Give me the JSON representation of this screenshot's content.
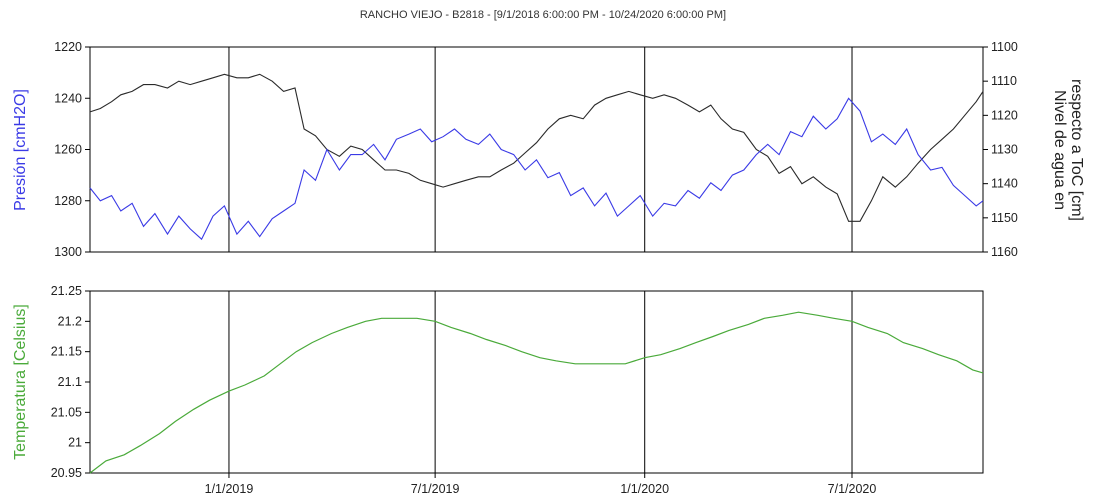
{
  "title": "RANCHO VIEJO - B2818 -  [9/1/2018 6:00:00 PM - 10/24/2020 6:00:00 PM]",
  "colors": {
    "pressure": "#3a3ae6",
    "level": "#2a2a2a",
    "temperature": "#4aaa3a",
    "axis": "#000000"
  },
  "x_tick_labels": [
    "1/1/2019",
    "7/1/2019",
    "1/1/2020",
    "7/1/2020"
  ],
  "chart_data": [
    {
      "type": "line",
      "title": "RANCHO VIEJO - B2818 -  [9/1/2018 6:00:00 PM - 10/24/2020 6:00:00 PM]",
      "xlabel": "",
      "x_range": [
        "2018-09-01",
        "2020-10-24"
      ],
      "grid": {
        "vertical_at": [
          "2019-01-01",
          "2019-07-01",
          "2020-01-01",
          "2020-07-01"
        ]
      },
      "y_left": {
        "label": "Presión [cmH2O]",
        "range": [
          1220,
          1300
        ],
        "reversed": true,
        "ticks": [
          "1220",
          "1240",
          "1260",
          "1280",
          "1300"
        ]
      },
      "y_right": {
        "label_line1": "Nivel de agua en",
        "label_line2": "respecto a ToC [cm]",
        "range": [
          1100,
          1160
        ],
        "reversed": true,
        "ticks": [
          "1100",
          "1110",
          "1120",
          "1130",
          "1140",
          "1150",
          "1160"
        ]
      },
      "series": [
        {
          "name": "Presión [cmH2O]",
          "axis": "left",
          "points": [
            [
              "2018-09-01",
              1275
            ],
            [
              "2018-09-10",
              1280
            ],
            [
              "2018-09-20",
              1278
            ],
            [
              "2018-09-28",
              1284
            ],
            [
              "2018-10-08",
              1281
            ],
            [
              "2018-10-18",
              1290
            ],
            [
              "2018-10-28",
              1285
            ],
            [
              "2018-11-08",
              1293
            ],
            [
              "2018-11-18",
              1286
            ],
            [
              "2018-11-28",
              1291
            ],
            [
              "2018-12-08",
              1295
            ],
            [
              "2018-12-18",
              1286
            ],
            [
              "2018-12-28",
              1282
            ],
            [
              "2019-01-08",
              1293
            ],
            [
              "2019-01-18",
              1288
            ],
            [
              "2019-01-28",
              1294
            ],
            [
              "2019-02-08",
              1287
            ],
            [
              "2019-02-18",
              1284
            ],
            [
              "2019-02-28",
              1281
            ],
            [
              "2019-03-08",
              1268
            ],
            [
              "2019-03-18",
              1272
            ],
            [
              "2019-03-28",
              1260
            ],
            [
              "2019-04-08",
              1268
            ],
            [
              "2019-04-18",
              1262
            ],
            [
              "2019-04-28",
              1262
            ],
            [
              "2019-05-08",
              1258
            ],
            [
              "2019-05-18",
              1264
            ],
            [
              "2019-05-28",
              1256
            ],
            [
              "2019-06-08",
              1254
            ],
            [
              "2019-06-18",
              1252
            ],
            [
              "2019-06-28",
              1257
            ],
            [
              "2019-07-08",
              1255
            ],
            [
              "2019-07-18",
              1252
            ],
            [
              "2019-07-28",
              1256
            ],
            [
              "2019-08-08",
              1258
            ],
            [
              "2019-08-18",
              1254
            ],
            [
              "2019-08-28",
              1260
            ],
            [
              "2019-09-08",
              1262
            ],
            [
              "2019-09-18",
              1268
            ],
            [
              "2019-09-28",
              1264
            ],
            [
              "2019-10-08",
              1271
            ],
            [
              "2019-10-18",
              1269
            ],
            [
              "2019-10-28",
              1278
            ],
            [
              "2019-11-08",
              1275
            ],
            [
              "2019-11-18",
              1282
            ],
            [
              "2019-11-28",
              1277
            ],
            [
              "2019-12-08",
              1286
            ],
            [
              "2019-12-18",
              1282
            ],
            [
              "2019-12-28",
              1278
            ],
            [
              "2020-01-08",
              1286
            ],
            [
              "2020-01-18",
              1281
            ],
            [
              "2020-01-28",
              1282
            ],
            [
              "2020-02-08",
              1276
            ],
            [
              "2020-02-18",
              1279
            ],
            [
              "2020-02-28",
              1273
            ],
            [
              "2020-03-08",
              1276
            ],
            [
              "2020-03-18",
              1270
            ],
            [
              "2020-03-28",
              1268
            ],
            [
              "2020-04-08",
              1262
            ],
            [
              "2020-04-18",
              1258
            ],
            [
              "2020-04-28",
              1262
            ],
            [
              "2020-05-08",
              1253
            ],
            [
              "2020-05-18",
              1255
            ],
            [
              "2020-05-28",
              1247
            ],
            [
              "2020-06-08",
              1252
            ],
            [
              "2020-06-18",
              1248
            ],
            [
              "2020-06-28",
              1240
            ],
            [
              "2020-07-08",
              1245
            ],
            [
              "2020-07-18",
              1257
            ],
            [
              "2020-07-28",
              1254
            ],
            [
              "2020-08-08",
              1258
            ],
            [
              "2020-08-18",
              1252
            ],
            [
              "2020-08-28",
              1262
            ],
            [
              "2020-09-08",
              1268
            ],
            [
              "2020-09-18",
              1267
            ],
            [
              "2020-09-28",
              1274
            ],
            [
              "2020-10-08",
              1278
            ],
            [
              "2020-10-18",
              1282
            ],
            [
              "2020-10-24",
              1280
            ]
          ]
        },
        {
          "name": "Nivel de agua en respecto a ToC [cm]",
          "axis": "right",
          "points": [
            [
              "2018-09-01",
              1119
            ],
            [
              "2018-09-10",
              1118
            ],
            [
              "2018-09-20",
              1116
            ],
            [
              "2018-09-28",
              1114
            ],
            [
              "2018-10-08",
              1113
            ],
            [
              "2018-10-18",
              1111
            ],
            [
              "2018-10-28",
              1111
            ],
            [
              "2018-11-08",
              1112
            ],
            [
              "2018-11-18",
              1110
            ],
            [
              "2018-11-28",
              1111
            ],
            [
              "2018-12-08",
              1110
            ],
            [
              "2018-12-18",
              1109
            ],
            [
              "2018-12-28",
              1108
            ],
            [
              "2019-01-08",
              1109
            ],
            [
              "2019-01-18",
              1109
            ],
            [
              "2019-01-28",
              1108
            ],
            [
              "2019-02-08",
              1110
            ],
            [
              "2019-02-18",
              1113
            ],
            [
              "2019-02-28",
              1112
            ],
            [
              "2019-03-08",
              1124
            ],
            [
              "2019-03-18",
              1126
            ],
            [
              "2019-03-28",
              1130
            ],
            [
              "2019-04-08",
              1132
            ],
            [
              "2019-04-18",
              1129
            ],
            [
              "2019-04-28",
              1130
            ],
            [
              "2019-05-08",
              1133
            ],
            [
              "2019-05-18",
              1136
            ],
            [
              "2019-05-28",
              1136
            ],
            [
              "2019-06-08",
              1137
            ],
            [
              "2019-06-18",
              1139
            ],
            [
              "2019-06-28",
              1140
            ],
            [
              "2019-07-08",
              1141
            ],
            [
              "2019-07-18",
              1140
            ],
            [
              "2019-07-28",
              1139
            ],
            [
              "2019-08-08",
              1138
            ],
            [
              "2019-08-18",
              1138
            ],
            [
              "2019-08-28",
              1136
            ],
            [
              "2019-09-08",
              1134
            ],
            [
              "2019-09-18",
              1131
            ],
            [
              "2019-09-28",
              1128
            ],
            [
              "2019-10-08",
              1124
            ],
            [
              "2019-10-18",
              1121
            ],
            [
              "2019-10-28",
              1120
            ],
            [
              "2019-11-08",
              1121
            ],
            [
              "2019-11-18",
              1117
            ],
            [
              "2019-11-28",
              1115
            ],
            [
              "2019-12-08",
              1114
            ],
            [
              "2019-12-18",
              1113
            ],
            [
              "2019-12-28",
              1114
            ],
            [
              "2020-01-08",
              1115
            ],
            [
              "2020-01-18",
              1114
            ],
            [
              "2020-01-28",
              1115
            ],
            [
              "2020-02-08",
              1117
            ],
            [
              "2020-02-18",
              1119
            ],
            [
              "2020-02-28",
              1117
            ],
            [
              "2020-03-08",
              1121
            ],
            [
              "2020-03-18",
              1124
            ],
            [
              "2020-03-28",
              1125
            ],
            [
              "2020-04-08",
              1130
            ],
            [
              "2020-04-18",
              1132
            ],
            [
              "2020-04-28",
              1137
            ],
            [
              "2020-05-08",
              1135
            ],
            [
              "2020-05-18",
              1140
            ],
            [
              "2020-05-28",
              1138
            ],
            [
              "2020-06-08",
              1141
            ],
            [
              "2020-06-18",
              1143
            ],
            [
              "2020-06-28",
              1151
            ],
            [
              "2020-07-08",
              1151
            ],
            [
              "2020-07-18",
              1145
            ],
            [
              "2020-07-28",
              1138
            ],
            [
              "2020-08-08",
              1141
            ],
            [
              "2020-08-18",
              1138
            ],
            [
              "2020-08-28",
              1134
            ],
            [
              "2020-09-08",
              1130
            ],
            [
              "2020-09-18",
              1127
            ],
            [
              "2020-09-28",
              1124
            ],
            [
              "2020-10-08",
              1120
            ],
            [
              "2020-10-18",
              1116
            ],
            [
              "2020-10-24",
              1113
            ]
          ]
        }
      ]
    },
    {
      "type": "line",
      "xlabel": "",
      "x_range": [
        "2018-09-01",
        "2020-10-24"
      ],
      "x_ticks": [
        "1/1/2019",
        "7/1/2019",
        "1/1/2020",
        "7/1/2020"
      ],
      "ylabel": "Temperatura [Celsius]",
      "ylim": [
        20.95,
        21.25
      ],
      "y_ticks": [
        "20.95",
        "21",
        "21.05",
        "21.1",
        "21.15",
        "21.2",
        "21.25"
      ],
      "series": [
        {
          "name": "Temperatura [Celsius]",
          "points": [
            [
              "2018-09-01",
              20.95
            ],
            [
              "2018-09-15",
              20.97
            ],
            [
              "2018-10-01",
              20.98
            ],
            [
              "2018-10-15",
              20.995
            ],
            [
              "2018-11-01",
              21.015
            ],
            [
              "2018-11-15",
              21.035
            ],
            [
              "2018-12-01",
              21.055
            ],
            [
              "2018-12-15",
              21.07
            ],
            [
              "2019-01-01",
              21.085
            ],
            [
              "2019-01-15",
              21.095
            ],
            [
              "2019-02-01",
              21.11
            ],
            [
              "2019-02-15",
              21.13
            ],
            [
              "2019-03-01",
              21.15
            ],
            [
              "2019-03-15",
              21.165
            ],
            [
              "2019-04-01",
              21.18
            ],
            [
              "2019-04-15",
              21.19
            ],
            [
              "2019-05-01",
              21.2
            ],
            [
              "2019-05-15",
              21.205
            ],
            [
              "2019-06-01",
              21.205
            ],
            [
              "2019-06-15",
              21.205
            ],
            [
              "2019-07-01",
              21.2
            ],
            [
              "2019-07-15",
              21.19
            ],
            [
              "2019-08-01",
              21.18
            ],
            [
              "2019-08-15",
              21.17
            ],
            [
              "2019-09-01",
              21.16
            ],
            [
              "2019-09-15",
              21.15
            ],
            [
              "2019-10-01",
              21.14
            ],
            [
              "2019-10-15",
              21.135
            ],
            [
              "2019-11-01",
              21.13
            ],
            [
              "2019-11-15",
              21.13
            ],
            [
              "2019-12-01",
              21.13
            ],
            [
              "2019-12-15",
              21.13
            ],
            [
              "2020-01-01",
              21.14
            ],
            [
              "2020-01-15",
              21.145
            ],
            [
              "2020-02-01",
              21.155
            ],
            [
              "2020-02-15",
              21.165
            ],
            [
              "2020-03-01",
              21.175
            ],
            [
              "2020-03-15",
              21.185
            ],
            [
              "2020-04-01",
              21.195
            ],
            [
              "2020-04-15",
              21.205
            ],
            [
              "2020-05-01",
              21.21
            ],
            [
              "2020-05-15",
              21.215
            ],
            [
              "2020-06-01",
              21.21
            ],
            [
              "2020-06-15",
              21.205
            ],
            [
              "2020-07-01",
              21.2
            ],
            [
              "2020-07-15",
              21.19
            ],
            [
              "2020-08-01",
              21.18
            ],
            [
              "2020-08-15",
              21.165
            ],
            [
              "2020-09-01",
              21.155
            ],
            [
              "2020-09-15",
              21.145
            ],
            [
              "2020-10-01",
              21.135
            ],
            [
              "2020-10-15",
              21.12
            ],
            [
              "2020-10-24",
              21.115
            ]
          ]
        }
      ]
    }
  ]
}
